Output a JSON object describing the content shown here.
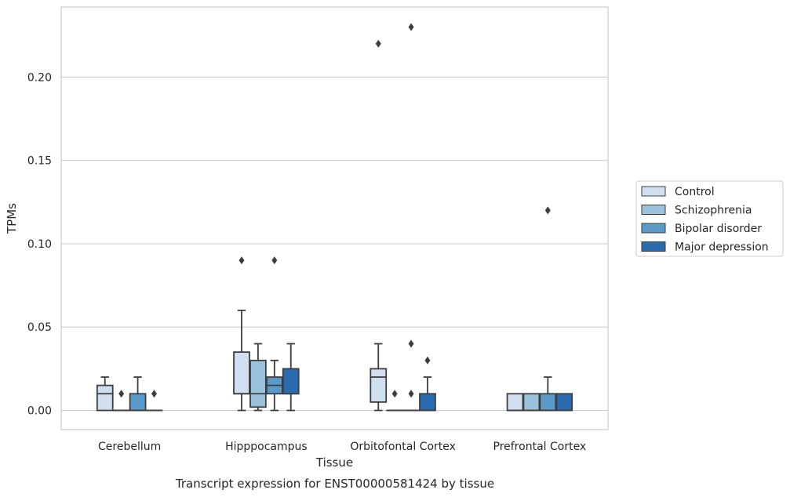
{
  "chart_data": {
    "type": "boxplot",
    "title": "",
    "caption": "Transcript expression for ENST00000581424 by tissue",
    "xlabel": "Tissue",
    "ylabel": "TPMs",
    "ylim": [
      -0.0115,
      0.242
    ],
    "yticks": [
      0.0,
      0.05,
      0.1,
      0.15,
      0.2
    ],
    "ytick_labels": [
      "0.00",
      "0.05",
      "0.10",
      "0.15",
      "0.20"
    ],
    "grid": "horizontal",
    "legend_position": "right",
    "categories": [
      "Cerebellum",
      "Hipppocampus",
      "Orbitofontal Cortex",
      "Prefrontal Cortex"
    ],
    "series": [
      {
        "name": "Control",
        "color": "#cfdfef",
        "boxes": [
          {
            "whislo": 0.0,
            "q1": 0.0,
            "med": 0.01,
            "q3": 0.015,
            "whishi": 0.02,
            "fliers": []
          },
          {
            "whislo": 0.0,
            "q1": 0.01,
            "med": 0.01,
            "q3": 0.035,
            "whishi": 0.06,
            "fliers": [
              0.09
            ]
          },
          {
            "whislo": 0.0,
            "q1": 0.005,
            "med": 0.02,
            "q3": 0.025,
            "whishi": 0.04,
            "fliers": [
              0.22
            ]
          },
          {
            "whislo": 0.0,
            "q1": 0.0,
            "med": 0.0,
            "q3": 0.01,
            "whishi": 0.01,
            "fliers": []
          }
        ]
      },
      {
        "name": "Schizophrenia",
        "color": "#9ac2dd",
        "boxes": [
          {
            "whislo": 0.0,
            "q1": 0.0,
            "med": 0.0,
            "q3": 0.0,
            "whishi": 0.0,
            "fliers": [
              0.01
            ]
          },
          {
            "whislo": 0.0,
            "q1": 0.002,
            "med": 0.01,
            "q3": 0.03,
            "whishi": 0.04,
            "fliers": []
          },
          {
            "whislo": 0.0,
            "q1": 0.0,
            "med": 0.0,
            "q3": 0.0,
            "whishi": 0.0,
            "fliers": [
              0.01
            ]
          },
          {
            "whislo": 0.0,
            "q1": 0.0,
            "med": 0.0,
            "q3": 0.01,
            "whishi": 0.01,
            "fliers": []
          }
        ]
      },
      {
        "name": "Bipolar disorder",
        "color": "#5a9ac9",
        "boxes": [
          {
            "whislo": 0.0,
            "q1": 0.0,
            "med": 0.0,
            "q3": 0.01,
            "whishi": 0.02,
            "fliers": []
          },
          {
            "whislo": 0.0,
            "q1": 0.01,
            "med": 0.015,
            "q3": 0.02,
            "whishi": 0.03,
            "fliers": [
              0.09
            ]
          },
          {
            "whislo": 0.0,
            "q1": 0.0,
            "med": 0.0,
            "q3": 0.0,
            "whishi": 0.0,
            "fliers": [
              0.04,
              0.01,
              0.23
            ]
          },
          {
            "whislo": 0.0,
            "q1": 0.0,
            "med": 0.0,
            "q3": 0.01,
            "whishi": 0.02,
            "fliers": [
              0.12
            ]
          }
        ]
      },
      {
        "name": "Major depression",
        "color": "#2a6aae",
        "boxes": [
          {
            "whislo": 0.0,
            "q1": 0.0,
            "med": 0.0,
            "q3": 0.0,
            "whishi": 0.0,
            "fliers": [
              0.01
            ]
          },
          {
            "whislo": 0.0,
            "q1": 0.01,
            "med": 0.01,
            "q3": 0.025,
            "whishi": 0.04,
            "fliers": []
          },
          {
            "whislo": 0.0,
            "q1": 0.0,
            "med": 0.0,
            "q3": 0.01,
            "whishi": 0.02,
            "fliers": [
              0.03
            ]
          },
          {
            "whislo": 0.0,
            "q1": 0.0,
            "med": 0.0,
            "q3": 0.01,
            "whishi": 0.01,
            "fliers": []
          }
        ]
      }
    ]
  }
}
